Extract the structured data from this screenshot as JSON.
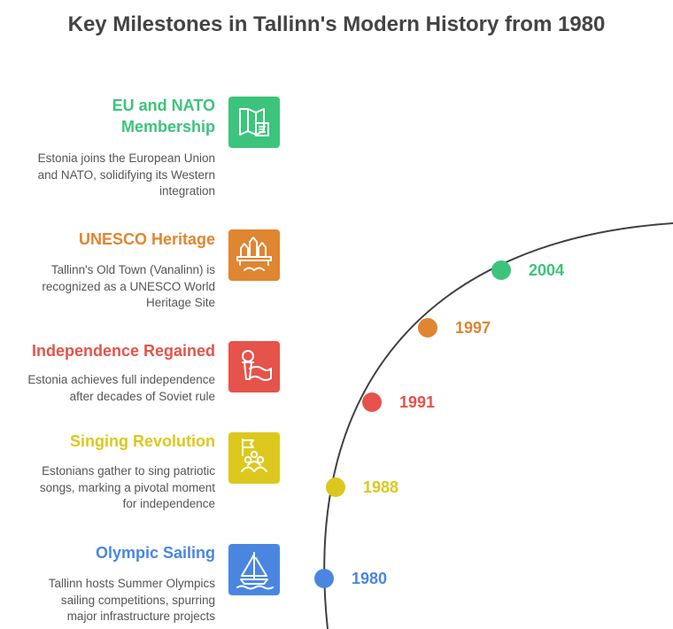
{
  "title": "Key Milestones in Tallinn's Modern History from 1980",
  "colors": {
    "green": "#3cc47c",
    "orange": "#e08530",
    "red": "#e5534b",
    "yellow": "#dcc81d",
    "blue": "#4a86e0",
    "arc": "#404040",
    "title": "#444444",
    "text": "#555555"
  },
  "milestones": [
    {
      "title_lines": [
        "EU and NATO",
        "Membership"
      ],
      "description_lines": [
        "Estonia joins the European Union",
        "and NATO, solidifying its Western",
        "integration"
      ],
      "year": "2004",
      "color": "#3cc47c",
      "icon": "map-flag-icon"
    },
    {
      "title_lines": [
        "UNESCO Heritage"
      ],
      "description_lines": [
        "Tallinn's Old Town (Vanalinn) is",
        "recognized as a UNESCO World",
        "Heritage Site"
      ],
      "year": "1997",
      "color": "#e08530",
      "icon": "old-town-icon"
    },
    {
      "title_lines": [
        "Independence Regained"
      ],
      "description_lines": [
        "Estonia achieves full independence",
        "after decades of Soviet rule"
      ],
      "year": "1991",
      "color": "#e5534b",
      "icon": "waving-flag-icon"
    },
    {
      "title_lines": [
        "Singing Revolution"
      ],
      "description_lines": [
        "Estonians gather to sing patriotic",
        "songs, marking a pivotal moment",
        "for independence"
      ],
      "year": "1988",
      "color": "#dcc81d",
      "icon": "crowd-flag-icon"
    },
    {
      "title_lines": [
        "Olympic Sailing"
      ],
      "description_lines": [
        "Tallinn hosts Summer Olympics",
        "sailing competitions, spurring",
        "major infrastructure projects"
      ],
      "year": "1980",
      "color": "#4a86e0",
      "icon": "sailboat-icon"
    }
  ]
}
